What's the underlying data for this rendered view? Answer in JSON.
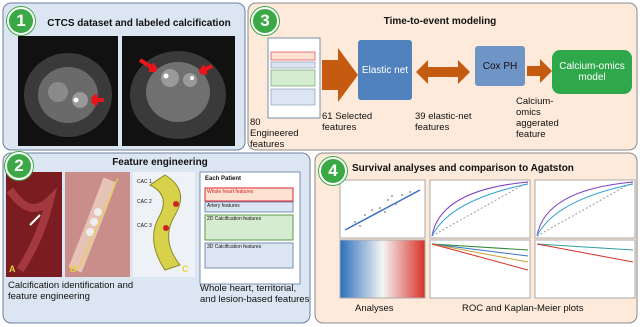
{
  "panels": [
    {
      "number": "1",
      "title": "CTCS dataset and labeled calcification"
    },
    {
      "number": "2",
      "title": "Feature engineering",
      "captions": [
        "Calcification identification and feature engineering",
        "Whole heart, territorial, and lesion-based features"
      ],
      "image_labels": [
        "A",
        "B",
        "C"
      ],
      "lesion_labels": [
        "CAC 1",
        "CAC 2",
        "CAC 3"
      ],
      "patient_card": {
        "title": "Each Patient",
        "rows": [
          "Whole heart features",
          "Artery features",
          "2D Calcification features",
          "3D Calcification features"
        ]
      }
    },
    {
      "number": "3",
      "title": "Time-to-event modeling",
      "boxes": [
        "Elastic net",
        "Cox PH",
        "Calcium-omics model"
      ],
      "feature_labels": [
        "80 Engineered features",
        "61 Selected features",
        "39 elastic-net features",
        "Calcium-omics aggerated feature"
      ]
    },
    {
      "number": "4",
      "title": "Survival analyses and comparison to Agatston",
      "captions": [
        "Analyses",
        "ROC and Kaplan-Meier plots"
      ]
    }
  ]
}
